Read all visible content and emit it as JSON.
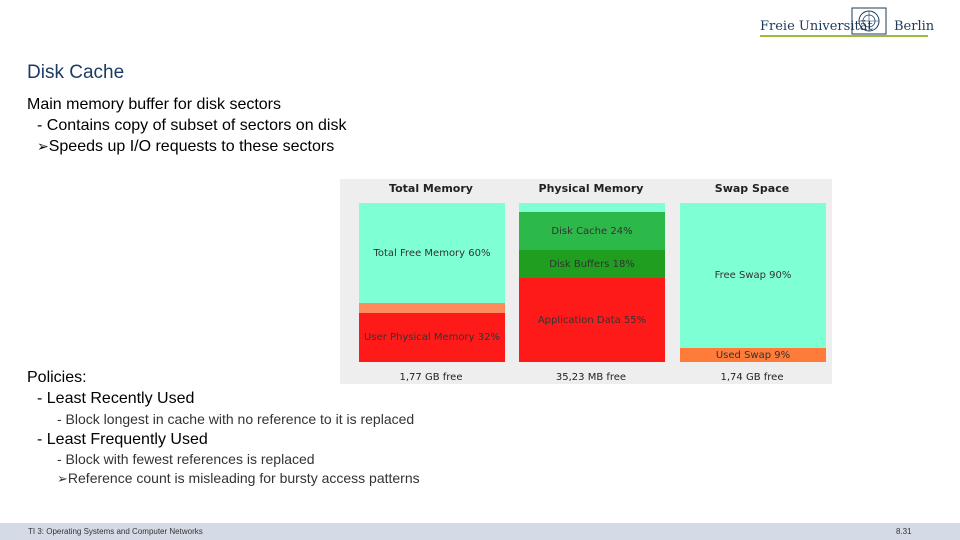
{
  "logo": {
    "left": "Freie Universität",
    "right": "Berlin"
  },
  "slide": {
    "title": "Disk Cache",
    "l1": "Main memory buffer for disk sectors",
    "l2": "- Contains copy of subset of sectors on disk",
    "l3": "Speeds up I/O requests to these sectors",
    "l4": "Policies:",
    "l5": "- Least Recently Used",
    "l6": "- Block longest in cache with no reference to it is replaced",
    "l7": "- Least Frequently Used",
    "l8": "- Block with fewest references is replaced",
    "l9": "Reference count is misleading for bursty access patterns",
    "arrow": "Ø"
  },
  "figure": {
    "total": {
      "header": "Total Memory",
      "free": "Total Free Memory 60%",
      "used": "User Physical Memory 32%",
      "footer": "1,77 GB free"
    },
    "physical": {
      "header": "Physical Memory",
      "cache": "Disk Cache 24%",
      "buffers": "Disk Buffers 18%",
      "app": "Application Data 55%",
      "footer": "35,23 MB free"
    },
    "swap": {
      "header": "Swap Space",
      "free": "Free Swap 90%",
      "used": "Used Swap 9%",
      "footer": "1,74 GB free"
    },
    "colors": {
      "free": "#7fffd4",
      "cache": "#2db84a",
      "buffers": "#1f9e1f",
      "used": "#ff1a1a",
      "swap_used": "#ff7b3a",
      "orange": "#ff8a5c"
    }
  },
  "footer": {
    "left": "TI 3: Operating Systems and Computer Networks",
    "right": "8.31"
  }
}
